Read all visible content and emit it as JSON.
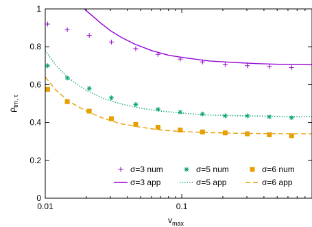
{
  "chart_data": {
    "type": "line",
    "xlabel": "v",
    "xlabel_sub": "max",
    "ylabel": "ρ",
    "ylabel_sub": "tm, τ",
    "x_scale": "log",
    "xlim": [
      0.01,
      0.9
    ],
    "ylim": [
      0,
      1
    ],
    "x_ticks": [
      {
        "value": 0.01,
        "label": "0.01"
      },
      {
        "value": 0.1,
        "label": "0.1"
      }
    ],
    "y_ticks": [
      {
        "value": 0,
        "label": "0"
      },
      {
        "value": 0.2,
        "label": "0.2"
      },
      {
        "value": 0.4,
        "label": "0.4"
      },
      {
        "value": 0.6,
        "label": "0.6"
      },
      {
        "value": 0.8,
        "label": "0.8"
      },
      {
        "value": 1,
        "label": "1"
      }
    ],
    "legend_position": "bottom-right",
    "series": [
      {
        "name": "σ=3 num",
        "kind": "points",
        "marker": "plus",
        "color": "#9400d3",
        "x": [
          0.0104,
          0.0145,
          0.021,
          0.0305,
          0.046,
          0.067,
          0.0975,
          0.142,
          0.208,
          0.302,
          0.438,
          0.638
        ],
        "y": [
          0.92,
          0.89,
          0.86,
          0.825,
          0.79,
          0.76,
          0.735,
          0.72,
          0.705,
          0.7,
          0.695,
          0.69
        ]
      },
      {
        "name": "σ=5 num",
        "kind": "points",
        "marker": "asterisk",
        "color": "#009e73",
        "x": [
          0.0104,
          0.0145,
          0.021,
          0.0305,
          0.046,
          0.067,
          0.0975,
          0.142,
          0.208,
          0.302,
          0.438,
          0.638
        ],
        "y": [
          0.7,
          0.635,
          0.58,
          0.53,
          0.495,
          0.47,
          0.455,
          0.445,
          0.435,
          0.435,
          0.43,
          0.425
        ]
      },
      {
        "name": "σ=6 num",
        "kind": "points",
        "marker": "square",
        "color": "#e69f00",
        "x": [
          0.0104,
          0.0145,
          0.021,
          0.0305,
          0.046,
          0.067,
          0.0975,
          0.142,
          0.208,
          0.302,
          0.438,
          0.638
        ],
        "y": [
          0.575,
          0.51,
          0.46,
          0.42,
          0.39,
          0.375,
          0.36,
          0.35,
          0.345,
          0.34,
          0.335,
          0.33
        ]
      },
      {
        "name": "σ=3 app",
        "kind": "line",
        "dash": "solid",
        "color": "#9400d3",
        "x": [
          0.0193,
          0.022,
          0.0255,
          0.03,
          0.036,
          0.045,
          0.06,
          0.08,
          0.11,
          0.16,
          0.24,
          0.36,
          0.55,
          0.9
        ],
        "y": [
          1.0,
          0.965,
          0.925,
          0.885,
          0.85,
          0.815,
          0.78,
          0.755,
          0.74,
          0.725,
          0.717,
          0.711,
          0.707,
          0.705
        ]
      },
      {
        "name": "σ=5 app",
        "kind": "line",
        "dash": "dotted",
        "color": "#009e73",
        "x": [
          0.01,
          0.012,
          0.015,
          0.02,
          0.026,
          0.035,
          0.05,
          0.07,
          0.1,
          0.15,
          0.22,
          0.35,
          0.55,
          0.9
        ],
        "y": [
          0.78,
          0.7,
          0.63,
          0.57,
          0.53,
          0.5,
          0.475,
          0.46,
          0.45,
          0.44,
          0.437,
          0.434,
          0.432,
          0.431
        ]
      },
      {
        "name": "σ=6 app",
        "kind": "line",
        "dash": "dashed",
        "color": "#e69f00",
        "x": [
          0.01,
          0.012,
          0.015,
          0.02,
          0.026,
          0.035,
          0.05,
          0.07,
          0.1,
          0.15,
          0.22,
          0.35,
          0.55,
          0.9
        ],
        "y": [
          0.64,
          0.57,
          0.51,
          0.46,
          0.425,
          0.395,
          0.375,
          0.36,
          0.352,
          0.347,
          0.344,
          0.342,
          0.341,
          0.34
        ]
      }
    ]
  }
}
